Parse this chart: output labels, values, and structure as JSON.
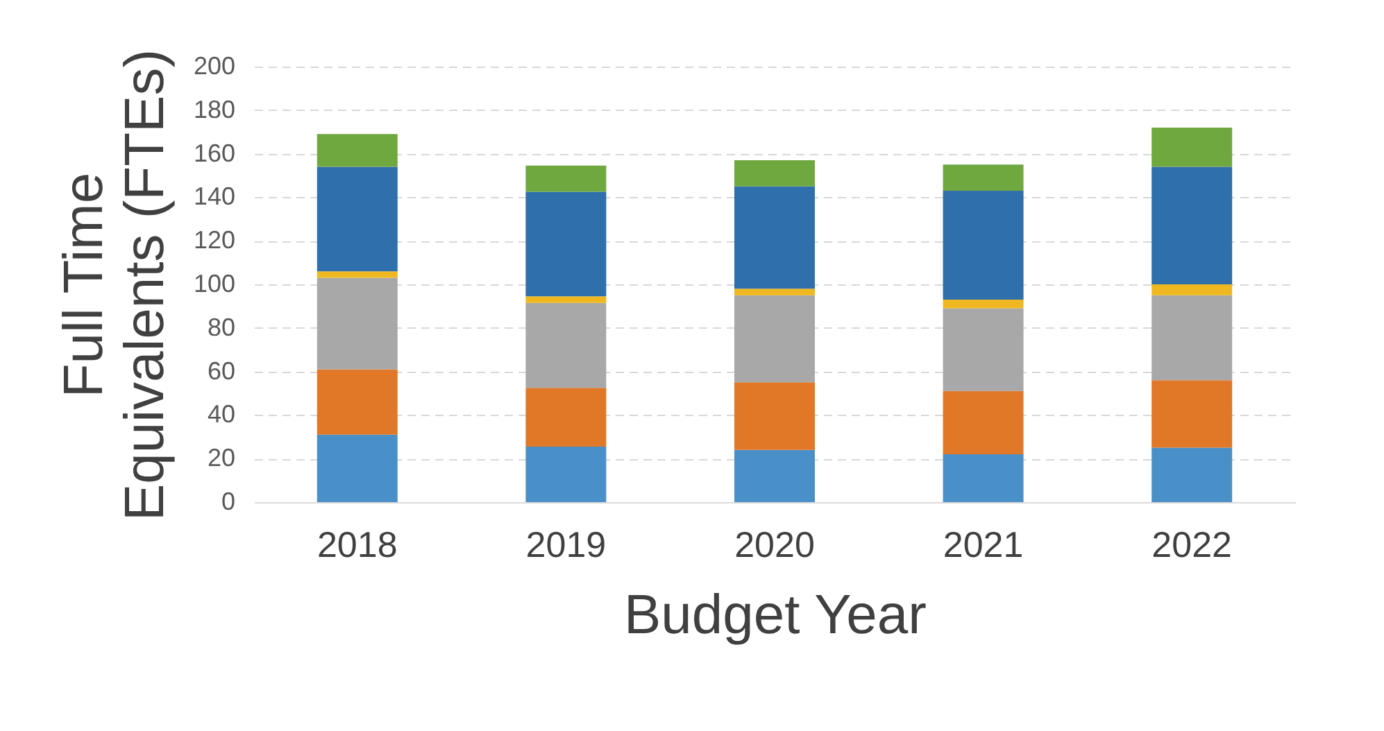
{
  "chart_data": {
    "type": "bar",
    "stacked": true,
    "xlabel": "Budget Year",
    "ylabel": "Full Time Equivalents (FTEs)",
    "categories": [
      "2018",
      "2019",
      "2020",
      "2021",
      "2022"
    ],
    "series": [
      {
        "color": "#4a90c8",
        "values": [
          31,
          25.5,
          24,
          22,
          25
        ]
      },
      {
        "color": "#e07828",
        "values": [
          30,
          27,
          31,
          29,
          31
        ]
      },
      {
        "color": "#a8a8a8",
        "values": [
          42,
          39,
          40,
          38,
          39
        ]
      },
      {
        "color": "#f0b820",
        "values": [
          3,
          3,
          3,
          4,
          5
        ]
      },
      {
        "color": "#2e6fac",
        "values": [
          48,
          48,
          47,
          50,
          54
        ]
      },
      {
        "color": "#70a840",
        "values": [
          15,
          12,
          12,
          12,
          18
        ]
      }
    ],
    "ylim": [
      0,
      200
    ],
    "yticks": [
      0,
      20,
      40,
      60,
      80,
      100,
      120,
      140,
      160,
      180,
      200
    ],
    "grid": "y",
    "legend": false
  }
}
